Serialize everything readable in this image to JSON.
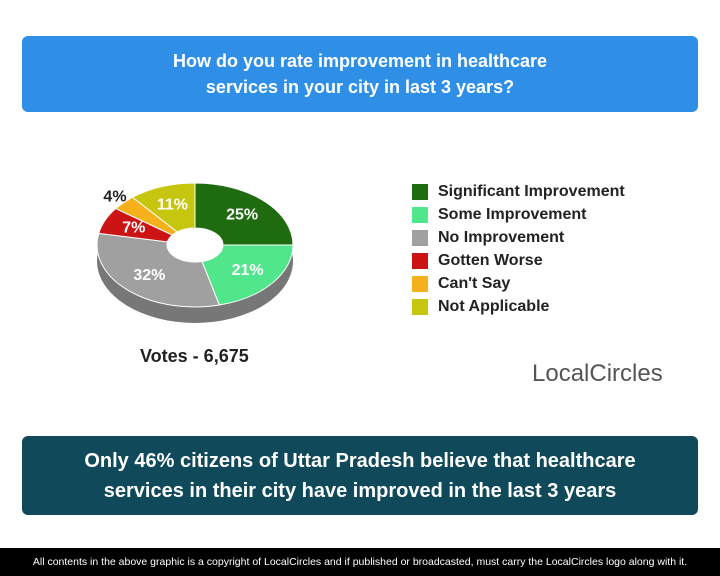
{
  "title": "How do you rate improvement in healthcare services in your city in last 3 years?",
  "chart_data": {
    "type": "pie",
    "donut": true,
    "categories": [
      "Significant Improvement",
      "Some Improvement",
      "No Improvement",
      "Gotten Worse",
      "Can't Say",
      "Not Applicable"
    ],
    "values": [
      25,
      21,
      32,
      7,
      4,
      11
    ],
    "value_labels": [
      "25%",
      "21%",
      "32%",
      "7%",
      "4%",
      "11%"
    ],
    "colors": [
      "#1f6b10",
      "#52e68c",
      "#a0a0a0",
      "#cc1414",
      "#f4b11c",
      "#c6c60e"
    ],
    "legend": "right"
  },
  "votes": "Votes - 6,675",
  "logo": "LocalCircles",
  "conclusion": "Only 46% citizens of Uttar Pradesh believe that healthcare services in their city have improved in the last 3 years",
  "footer": "All contents in the above graphic is a copyright of LocalCircles and if published or broadcasted, must carry the LocalCircles logo along with it."
}
